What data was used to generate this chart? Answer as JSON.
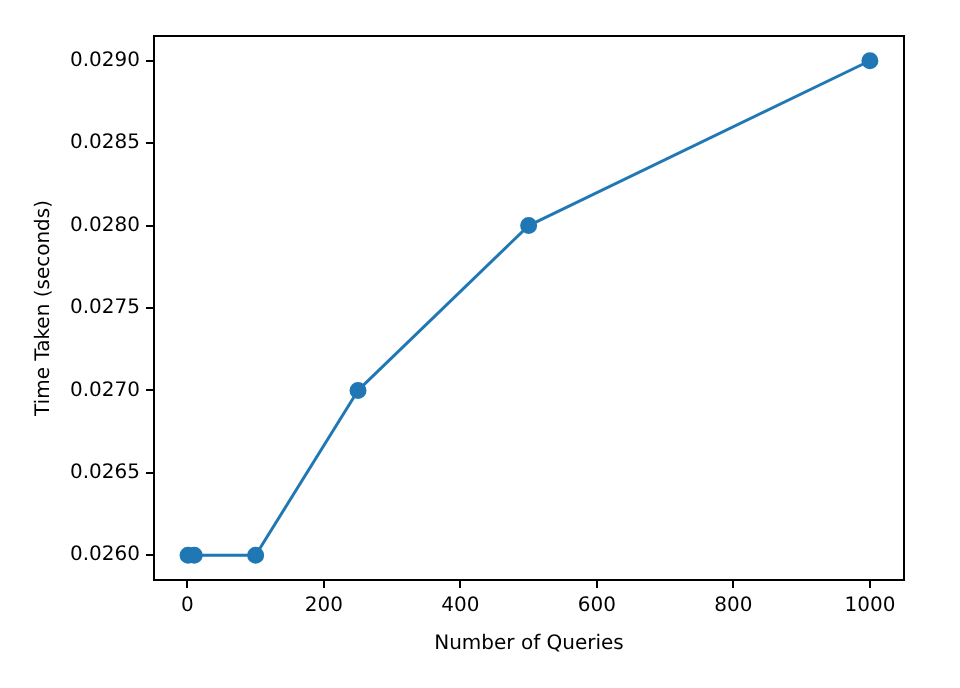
{
  "chart_data": {
    "type": "line",
    "xlabel": "Number of Queries",
    "ylabel": "Time Taken (seconds)",
    "x": [
      1,
      10,
      100,
      250,
      500,
      1000
    ],
    "series": [
      {
        "color": "#1f77b4",
        "values": [
          0.026,
          0.026,
          0.026,
          0.027,
          0.028,
          0.029
        ]
      }
    ],
    "xlim": [
      -48.95,
      1049.95
    ],
    "xticks": [
      0,
      200,
      400,
      600,
      800,
      1000
    ],
    "ylim": [
      0.02585,
      0.02915
    ],
    "yticks": [
      {
        "value": 0.026,
        "label": "0.0260"
      },
      0.0265,
      {
        "value": 0.027,
        "label": "0.0270"
      },
      0.0275,
      {
        "value": 0.028,
        "label": "0.0280"
      },
      0.0285,
      {
        "value": 0.029,
        "label": "0.0290"
      }
    ],
    "marker": "circle",
    "line_style": "solid",
    "grid": false,
    "legend": false
  }
}
